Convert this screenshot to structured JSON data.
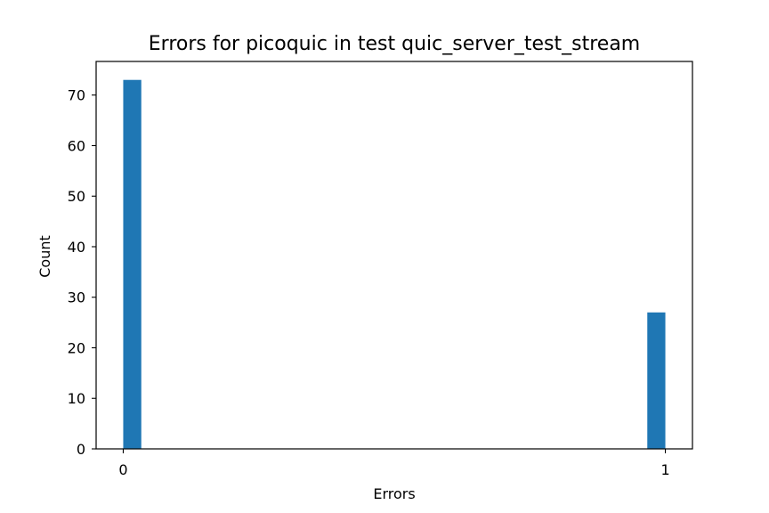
{
  "chart_data": {
    "type": "bar",
    "title": "Errors for picoquic in test quic_server_test_stream",
    "xlabel": "Errors",
    "ylabel": "Count",
    "bins": [
      {
        "x_start": 0.0,
        "x_end": 0.0333,
        "value": 73
      },
      {
        "x_start": 0.9667,
        "x_end": 1.0,
        "value": 27
      }
    ],
    "xlim": [
      -0.05,
      1.05
    ],
    "ylim": [
      0,
      76.65
    ],
    "xticks": [
      0,
      1
    ],
    "yticks": [
      0,
      10,
      20,
      30,
      40,
      50,
      60,
      70
    ],
    "grid": false,
    "bar_color": "#1f77b4"
  }
}
